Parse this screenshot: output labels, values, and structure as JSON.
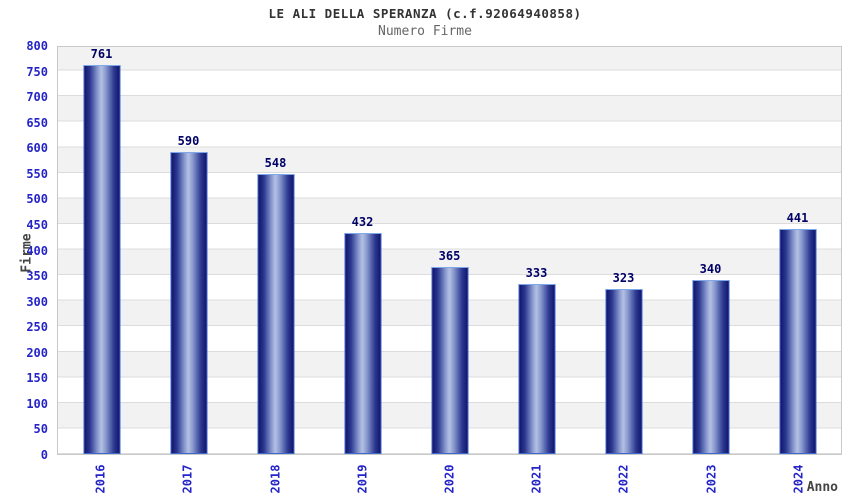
{
  "header": {
    "title": "LE ALI DELLA SPERANZA (c.f.92064940858)",
    "subtitle": "Numero Firme"
  },
  "chart_data": {
    "type": "bar",
    "title": "LE ALI DELLA SPERANZA (c.f.92064940858)",
    "subtitle": "Numero Firme",
    "categories": [
      "2016",
      "2017",
      "2018",
      "2019",
      "2020",
      "2021",
      "2022",
      "2023",
      "2024"
    ],
    "values": [
      761,
      590,
      548,
      432,
      365,
      333,
      323,
      340,
      441
    ],
    "xlabel": "Anno",
    "ylabel": "Firme",
    "ylim": [
      0,
      800
    ],
    "ytick_step": 50,
    "yticks": [
      0,
      50,
      100,
      150,
      200,
      250,
      300,
      350,
      400,
      450,
      500,
      550,
      600,
      650,
      700,
      750,
      800
    ],
    "grid": true,
    "legend": false,
    "value_labels_shown": true,
    "colors": {
      "bar_dark": "#14146a",
      "bar_light": "#b4c0e2",
      "bar_border": "#3d68cc",
      "tick_label": "#2424c8",
      "value_label": "#000066",
      "grid_line": "#dcdcdc",
      "band_fill": "#f2f2f2",
      "title_text": "#333333",
      "subtitle_text": "#666666",
      "axis_title_text": "#444444"
    }
  }
}
